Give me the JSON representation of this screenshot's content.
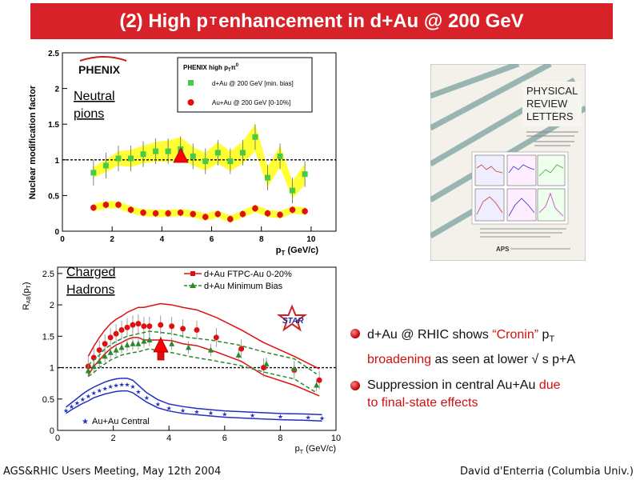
{
  "slide": {
    "title_pre": "(2) High p",
    "title_sub": "T",
    "title_post": " enhancement in d+Au @ 200 GeV"
  },
  "footer": {
    "left": "AGS&RHIC Users Meeting, May 12th 2004",
    "right": "David d'Enterria (Columbia Univ.)"
  },
  "bullets": [
    {
      "seg1": "d+Au @ RHIC shows ",
      "seg2": "“Cronin”",
      "seg3": " p",
      "seg3_sub": "T",
      "seg4": "broadening",
      "seg5": " as seen at lower √ s p+A"
    },
    {
      "seg1": "Suppression in central Au+Au ",
      "seg2": "due",
      "seg3": "to final-state effects"
    }
  ],
  "journal": {
    "line1": "PHYSICAL",
    "line2": "REVIEW",
    "line3": "LETTERS",
    "publisher": "APS"
  },
  "chart_data": [
    {
      "type": "scatter",
      "ylabel": "Nuclear modification factor",
      "xlabel": "p",
      "xlabel_sub": "T",
      "xlabel_unit": " (GeV/c)",
      "xlim": [
        0,
        11
      ],
      "ylim": [
        0,
        2.5
      ],
      "xticks": [
        0,
        2,
        4,
        6,
        8,
        10
      ],
      "yticks": [
        0,
        0.5,
        1,
        1.5,
        2,
        2.5
      ],
      "reference_line": 1,
      "logo": "PHENIX",
      "annotation": [
        "Neutral",
        "pions"
      ],
      "legend": {
        "title": "PHENIX high p",
        "title_sub": "T",
        "title_sup": "0",
        "title_symbol": "π",
        "position": "top-right"
      },
      "series": [
        {
          "name": "d+Au @ 200 GeV [min. bias]",
          "color": "#44cc44",
          "marker": "square",
          "x": [
            1.25,
            1.75,
            2.25,
            2.75,
            3.25,
            3.75,
            4.25,
            4.75,
            5.25,
            5.75,
            6.25,
            6.75,
            7.25,
            7.75,
            8.25,
            8.75,
            9.25,
            9.75
          ],
          "y": [
            0.82,
            0.92,
            1.02,
            1.02,
            1.08,
            1.12,
            1.12,
            1.15,
            1.05,
            0.98,
            1.1,
            0.98,
            1.1,
            1.32,
            0.75,
            1.05,
            0.57,
            0.8
          ],
          "band_low": [
            0.75,
            0.83,
            0.92,
            0.9,
            0.95,
            0.98,
            0.97,
            1.0,
            0.92,
            0.85,
            0.95,
            0.84,
            0.95,
            1.12,
            0.62,
            0.9,
            0.46,
            0.65
          ],
          "band_high": [
            0.9,
            1.0,
            1.12,
            1.14,
            1.2,
            1.25,
            1.27,
            1.32,
            1.18,
            1.1,
            1.25,
            1.12,
            1.26,
            1.5,
            0.9,
            1.2,
            0.7,
            0.95
          ]
        },
        {
          "name": "Au+Au @ 200 GeV [0-10%]",
          "color": "#e01010",
          "marker": "circle",
          "x": [
            1.25,
            1.75,
            2.25,
            2.75,
            3.25,
            3.75,
            4.25,
            4.75,
            5.25,
            5.75,
            6.25,
            6.75,
            7.25,
            7.75,
            8.25,
            8.75,
            9.25,
            9.75
          ],
          "y": [
            0.33,
            0.37,
            0.37,
            0.3,
            0.26,
            0.25,
            0.25,
            0.26,
            0.24,
            0.2,
            0.24,
            0.17,
            0.24,
            0.32,
            0.25,
            0.23,
            0.3,
            0.28
          ]
        }
      ]
    },
    {
      "type": "line",
      "ylabel": "R",
      "ylabel_sub": "AB",
      "ylabel_rest": "(p",
      "ylabel_rest_sub": "T",
      "ylabel_end": ")",
      "xlabel": "p",
      "xlabel_sub": "T",
      "xlabel_unit": " (GeV/c)",
      "xlim": [
        0,
        10
      ],
      "ylim": [
        0,
        2.6
      ],
      "xticks": [
        0,
        2,
        4,
        6,
        8,
        10
      ],
      "yticks": [
        0,
        0.5,
        1,
        1.5,
        2,
        2.5
      ],
      "reference_line": 1,
      "logo": "STAR",
      "annotation": [
        "Charged",
        "Hadrons"
      ],
      "legend": {
        "position": "top-right"
      },
      "series": [
        {
          "name": "d+Au FTPC-Au 0-20%",
          "color": "#e01010",
          "marker": "square",
          "x": [
            1.1,
            1.3,
            1.5,
            1.7,
            1.9,
            2.1,
            2.3,
            2.5,
            2.7,
            2.9,
            3.1,
            3.3,
            3.7,
            4.1,
            4.5,
            5.0,
            5.7,
            6.6,
            7.4,
            8.5,
            9.4
          ],
          "y": [
            1.02,
            1.16,
            1.28,
            1.38,
            1.48,
            1.54,
            1.6,
            1.64,
            1.68,
            1.7,
            1.66,
            1.66,
            1.68,
            1.66,
            1.62,
            1.6,
            1.48,
            1.3,
            1.0,
            0.96,
            0.8
          ],
          "band_low": [
            0.88,
            1.02,
            1.12,
            1.22,
            1.3,
            1.36,
            1.4,
            1.45,
            1.48,
            1.48,
            1.44,
            1.44,
            1.44,
            1.43,
            1.38,
            1.35,
            1.25,
            1.1,
            0.88,
            0.72,
            0.55
          ],
          "band_high": [
            1.18,
            1.34,
            1.48,
            1.6,
            1.7,
            1.77,
            1.82,
            1.88,
            1.92,
            1.96,
            1.96,
            1.98,
            2.02,
            2.0,
            1.96,
            1.92,
            1.8,
            1.6,
            1.4,
            1.18,
            0.98
          ]
        },
        {
          "name": "d+Au Minimum Bias",
          "color": "#2a8a2a",
          "marker": "triangle",
          "x": [
            1.1,
            1.3,
            1.5,
            1.7,
            1.9,
            2.1,
            2.3,
            2.5,
            2.7,
            2.9,
            3.1,
            3.3,
            3.7,
            4.1,
            4.7,
            5.5,
            6.5,
            7.5,
            8.5,
            9.3
          ],
          "y": [
            0.95,
            1.02,
            1.1,
            1.18,
            1.24,
            1.28,
            1.32,
            1.36,
            1.38,
            1.38,
            1.42,
            1.44,
            1.4,
            1.38,
            1.32,
            1.28,
            1.2,
            1.06,
            0.98,
            0.72
          ],
          "band_low": [
            0.86,
            0.92,
            1.0,
            1.06,
            1.12,
            1.16,
            1.2,
            1.22,
            1.24,
            1.25,
            1.28,
            1.3,
            1.26,
            1.24,
            1.18,
            1.12,
            1.04,
            0.92,
            0.82,
            0.6
          ],
          "band_high": [
            1.04,
            1.12,
            1.2,
            1.3,
            1.36,
            1.42,
            1.46,
            1.5,
            1.52,
            1.54,
            1.56,
            1.58,
            1.56,
            1.54,
            1.48,
            1.44,
            1.36,
            1.24,
            1.14,
            0.9
          ]
        },
        {
          "name": "Au+Au Central",
          "color": "#2030c0",
          "marker": "star",
          "x": [
            0.3,
            0.5,
            0.7,
            0.9,
            1.1,
            1.3,
            1.5,
            1.7,
            1.9,
            2.1,
            2.3,
            2.5,
            2.7,
            2.9,
            3.2,
            3.6,
            4.0,
            4.5,
            5.0,
            5.5,
            6.0,
            7.0,
            8.0,
            9.0,
            9.5
          ],
          "y": [
            0.32,
            0.38,
            0.44,
            0.5,
            0.55,
            0.6,
            0.64,
            0.67,
            0.7,
            0.72,
            0.73,
            0.73,
            0.7,
            0.62,
            0.52,
            0.42,
            0.36,
            0.32,
            0.3,
            0.28,
            0.26,
            0.24,
            0.22,
            0.21,
            0.2
          ],
          "band_low": [
            0.27,
            0.33,
            0.38,
            0.43,
            0.47,
            0.52,
            0.55,
            0.58,
            0.6,
            0.62,
            0.63,
            0.63,
            0.6,
            0.54,
            0.45,
            0.36,
            0.31,
            0.27,
            0.25,
            0.23,
            0.21,
            0.19,
            0.17,
            0.16,
            0.15
          ],
          "band_high": [
            0.37,
            0.44,
            0.51,
            0.58,
            0.64,
            0.69,
            0.73,
            0.77,
            0.8,
            0.82,
            0.83,
            0.83,
            0.8,
            0.72,
            0.6,
            0.49,
            0.42,
            0.38,
            0.35,
            0.33,
            0.31,
            0.29,
            0.27,
            0.26,
            0.25
          ]
        }
      ]
    }
  ]
}
